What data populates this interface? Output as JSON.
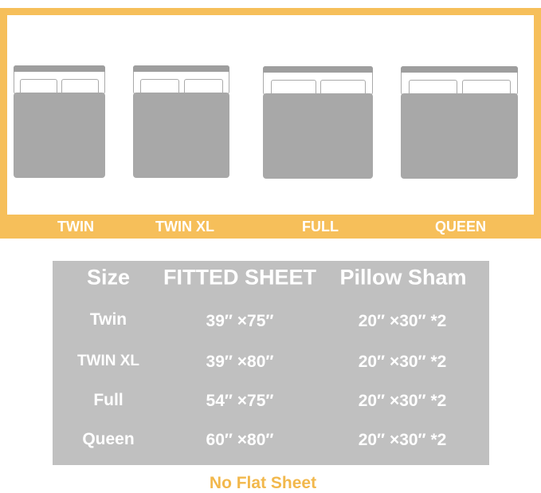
{
  "colors": {
    "frame": "#f6bf5a",
    "bed": "#a8a8a8",
    "table": "#c0c0c0",
    "note": "#f2b84c"
  },
  "beds": [
    {
      "label": "TWIN"
    },
    {
      "label": "TWIN XL"
    },
    {
      "label": "FULL"
    },
    {
      "label": "QUEEN"
    }
  ],
  "table": {
    "headers": [
      "Size",
      "FITTED SHEET",
      "Pillow Sham"
    ],
    "rows": [
      [
        "Twin",
        "39″ ×75″",
        "20″ ×30″ *2"
      ],
      [
        "TWIN XL",
        "39″ ×80″",
        "20″ ×30″ *2"
      ],
      [
        "Full",
        "54″ ×75″",
        "20″ ×30″ *2"
      ],
      [
        "Queen",
        "60″ ×80″",
        "20″ ×30″ *2"
      ]
    ]
  },
  "note": "No Flat Sheet"
}
